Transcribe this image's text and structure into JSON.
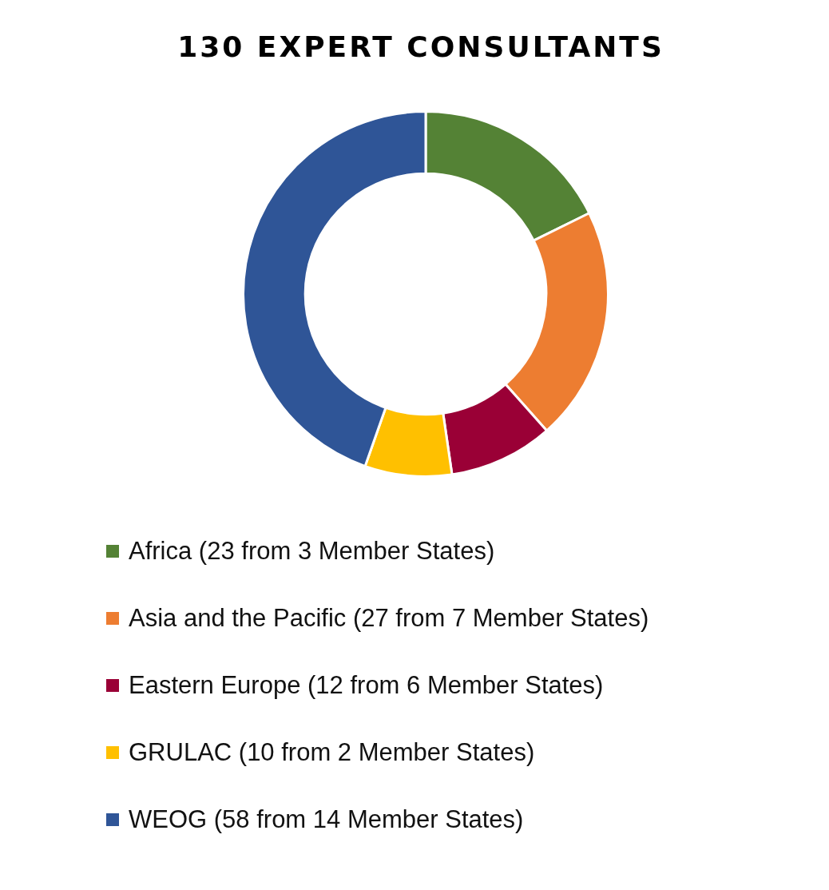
{
  "chart_data": {
    "type": "donut",
    "title": "130 EXPERT CONSULTANTS",
    "categories": [
      "Africa (23 from 3 Member States)",
      "Asia and the Pacific (27 from 7 Member States)",
      "Eastern Europe (12 from 6 Member States)",
      "GRULAC (10 from 2 Member States)",
      "WEOG (58 from 14 Member States)"
    ],
    "values": [
      23,
      27,
      12,
      10,
      58
    ],
    "colors": [
      "#548235",
      "#ed7d31",
      "#9a0036",
      "#ffc000",
      "#2f5597"
    ],
    "legend": "bottom"
  }
}
